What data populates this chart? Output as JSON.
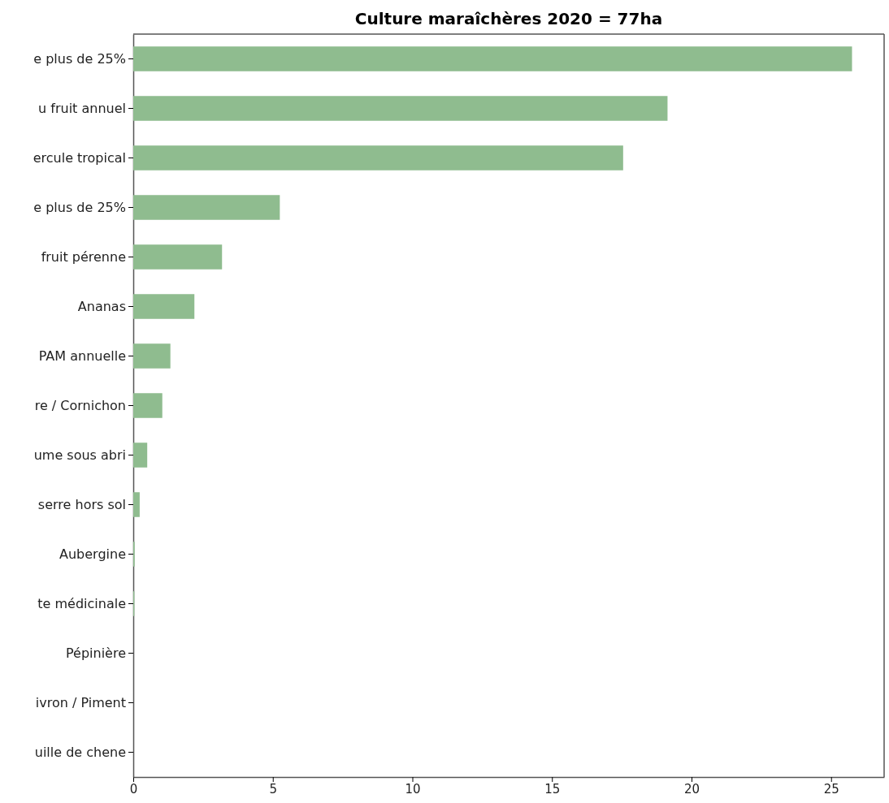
{
  "chart_data": {
    "type": "bar",
    "orientation": "horizontal",
    "title": "Culture maraîchères 2020 = 77ha",
    "categories": [
      "e plus de 25%",
      "u fruit annuel",
      "ercule tropical",
      "e plus de 25%",
      "fruit pérenne",
      "Ananas",
      "PAM annuelle",
      "re / Cornichon",
      "ume sous abri",
      "serre hors sol",
      "Aubergine",
      "te médicinale",
      "Pépinière",
      "ivron / Piment",
      "uille de chene"
    ],
    "values": [
      25.75,
      19.14,
      17.55,
      5.25,
      3.18,
      2.19,
      1.33,
      1.04,
      0.5,
      0.23,
      0.05,
      0.04,
      0,
      0,
      0
    ],
    "color": "#8fbc8f",
    "xlim": [
      0,
      26.9
    ],
    "xticks": [
      0,
      5,
      10,
      15,
      20,
      25
    ],
    "grid": false
  }
}
